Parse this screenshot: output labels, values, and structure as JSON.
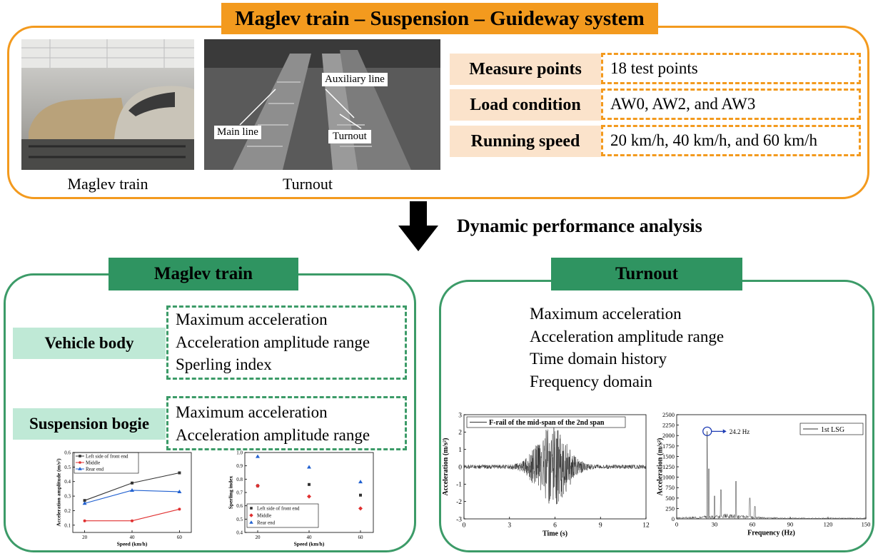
{
  "header": {
    "title": "Maglev train – Suspension – Guideway system"
  },
  "photos": {
    "left_caption": "Maglev train",
    "right_caption": "Turnout",
    "right_labels": {
      "auxiliary": "Auxiliary line",
      "main": "Main line",
      "turnout": "Turnout"
    }
  },
  "params": [
    {
      "label": "Measure points",
      "value": "18 test points"
    },
    {
      "label": "Load condition",
      "value": "AW0, AW2, and AW3"
    },
    {
      "label": "Running speed",
      "value": "20 km/h, 40 km/h, and 60 km/h"
    }
  ],
  "arrow_label": "Dynamic performance analysis",
  "maglev": {
    "title": "Maglev train",
    "vehicle_body": {
      "label": "Vehicle body",
      "items": [
        "Maximum acceleration",
        "Acceleration amplitude range",
        "Sperling index"
      ]
    },
    "suspension_bogie": {
      "label": "Suspension bogie",
      "items": [
        "Maximum acceleration",
        "Acceleration amplitude range"
      ]
    }
  },
  "turnout": {
    "title": "Turnout",
    "items": [
      "Maximum acceleration",
      "Acceleration amplitude range",
      "Time domain history",
      "Frequency domain"
    ]
  },
  "colors": {
    "orange": "#F39A1E",
    "green": "#2F9461",
    "light_green": "#BFE9D6",
    "light_orange": "#FBE3CB"
  },
  "chart_data": [
    {
      "type": "line",
      "xlabel": "Speed (km/h)",
      "ylabel": "Acceleration amplitude (m/s²)",
      "x": [
        20,
        40,
        60
      ],
      "xticks": [
        "20",
        "40",
        "60"
      ],
      "yticks": [
        "0.1",
        "0.2",
        "0.3",
        "0.4",
        "0.5",
        "0.6"
      ],
      "xlim": [
        15,
        65
      ],
      "ylim": [
        0.05,
        0.6
      ],
      "legend_position": "top-left",
      "series": [
        {
          "name": "Left side of front end",
          "values": [
            0.27,
            0.39,
            0.46
          ],
          "color": "#333333",
          "marker": "square"
        },
        {
          "name": "Middle",
          "values": [
            0.13,
            0.13,
            0.21
          ],
          "color": "#E03030",
          "marker": "circle"
        },
        {
          "name": "Rear end",
          "values": [
            0.25,
            0.34,
            0.33
          ],
          "color": "#2060D0",
          "marker": "triangle"
        }
      ]
    },
    {
      "type": "scatter",
      "xlabel": "Speed (km/h)",
      "ylabel": "Sperling index",
      "x": [
        20,
        40,
        60
      ],
      "xticks": [
        "20",
        "40",
        "60"
      ],
      "yticks": [
        "0.4",
        "0.5",
        "0.6",
        "0.7",
        "0.8",
        "0.9",
        "1.0"
      ],
      "xlim": [
        15,
        65
      ],
      "ylim": [
        0.4,
        1.0
      ],
      "legend_position": "bottom-center",
      "series": [
        {
          "name": "Left side of front end",
          "values": [
            0.75,
            0.76,
            0.68
          ],
          "color": "#333333",
          "marker": "square"
        },
        {
          "name": "Middle",
          "values": [
            0.75,
            0.67,
            0.58
          ],
          "color": "#E03030",
          "marker": "diamond"
        },
        {
          "name": "Rear end",
          "values": [
            0.97,
            0.89,
            0.78
          ],
          "color": "#2060D0",
          "marker": "triangle"
        }
      ]
    },
    {
      "type": "line",
      "xlabel": "Time (s)",
      "ylabel": "Acceleration (m/s²)",
      "xticks": [
        "0",
        "3",
        "6",
        "9",
        "12"
      ],
      "yticks": [
        "-3",
        "-2",
        "-1",
        "0",
        "1",
        "2",
        "3"
      ],
      "xlim": [
        0,
        12
      ],
      "ylim": [
        -3,
        3
      ],
      "legend_position": "top-left",
      "series": [
        {
          "name": "F-rail of the mid-span of the 2nd span"
        }
      ]
    },
    {
      "type": "line",
      "xlabel": "Frequency (Hz)",
      "ylabel": "Acceleration (m/s²)",
      "xticks": [
        "0",
        "30",
        "60",
        "90",
        "120",
        "150"
      ],
      "yticks": [
        "0",
        "250",
        "500",
        "750",
        "1000",
        "1250",
        "1500",
        "1750",
        "2000",
        "2250",
        "2500"
      ],
      "xlim": [
        0,
        150
      ],
      "ylim": [
        0,
        2500
      ],
      "legend_position": "top-right",
      "series": [
        {
          "name": "1st LSG"
        }
      ],
      "annotation": "24.2 Hz",
      "peak": {
        "x": 24.2,
        "y": 2100
      }
    }
  ]
}
